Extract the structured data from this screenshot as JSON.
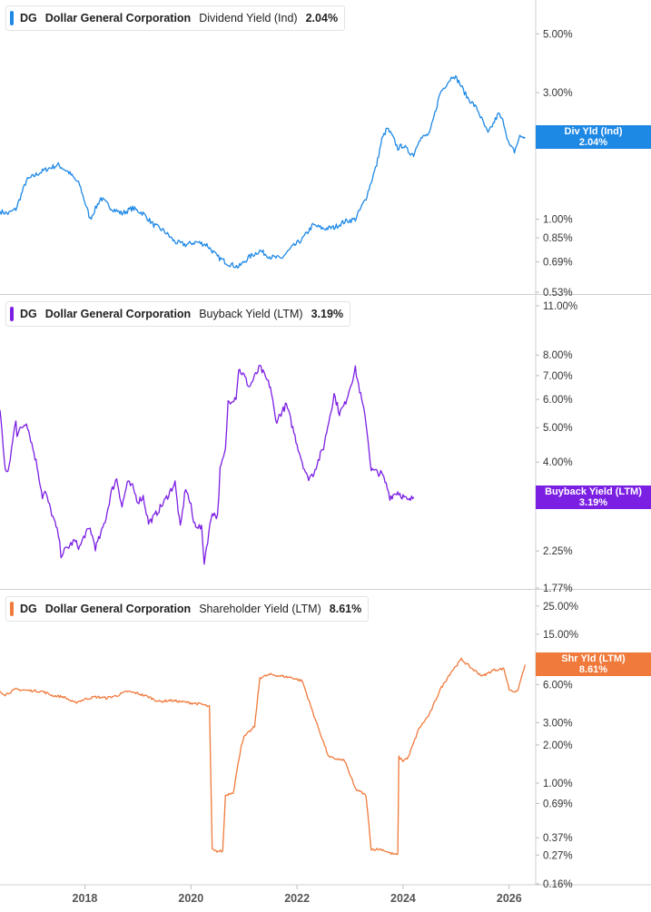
{
  "chart_data": [
    {
      "type": "line",
      "ticker": "DG",
      "company": "Dollar General Corporation",
      "metric": "Dividend Yield (Ind)",
      "current_value": "2.04%",
      "tag_label": "Div Yld (Ind)",
      "color": "#1e88e5",
      "scale": "log",
      "ylim": [
        0.53,
        6.4
      ],
      "ticks": [
        {
          "v": 5.0,
          "label": "5.00%"
        },
        {
          "v": 3.0,
          "label": "3.00%"
        },
        {
          "v": 1.0,
          "label": "1.00%"
        },
        {
          "v": 0.85,
          "label": "0.85%"
        },
        {
          "v": 0.69,
          "label": "0.69%"
        },
        {
          "v": 0.53,
          "label": "0.53%"
        }
      ],
      "ticks_hidden": [
        {
          "v": 2.0,
          "label": "2.00%"
        }
      ],
      "x": [
        2016.4,
        2016.55,
        2016.7,
        2016.9,
        2017.1,
        2017.3,
        2017.5,
        2017.7,
        2017.9,
        2018.1,
        2018.3,
        2018.5,
        2018.7,
        2018.9,
        2019.1,
        2019.3,
        2019.5,
        2019.7,
        2019.9,
        2020.1,
        2020.3,
        2020.5,
        2020.7,
        2020.9,
        2021.1,
        2021.3,
        2021.5,
        2021.7,
        2021.9,
        2022.1,
        2022.3,
        2022.5,
        2022.7,
        2022.9,
        2023.1,
        2023.3,
        2023.5,
        2023.6,
        2023.7,
        2023.8,
        2023.9,
        2024.0,
        2024.1,
        2024.2,
        2024.3,
        2024.5,
        2024.7,
        2024.8,
        2024.95,
        2025.05,
        2025.2,
        2025.4,
        2025.6,
        2025.8,
        2025.9,
        2026.0,
        2026.1,
        2026.2,
        2026.3
      ],
      "y": [
        1.07,
        1.05,
        1.09,
        1.4,
        1.48,
        1.55,
        1.6,
        1.5,
        1.35,
        1.0,
        1.2,
        1.1,
        1.05,
        1.1,
        1.05,
        0.95,
        0.9,
        0.82,
        0.8,
        0.82,
        0.8,
        0.72,
        0.68,
        0.66,
        0.72,
        0.76,
        0.72,
        0.71,
        0.78,
        0.84,
        0.95,
        0.92,
        0.93,
        0.98,
        1.0,
        1.2,
        1.6,
        2.0,
        2.2,
        2.05,
        1.85,
        1.9,
        1.8,
        1.75,
        2.0,
        2.1,
        3.0,
        3.2,
        3.5,
        3.3,
        2.9,
        2.6,
        2.1,
        2.5,
        2.3,
        1.9,
        1.8,
        2.05,
        2.04
      ]
    },
    {
      "type": "line",
      "ticker": "DG",
      "company": "Dollar General Corporation",
      "metric": "Buyback Yield (LTM)",
      "current_value": "3.19%",
      "tag_label": "Buyback Yield (LTM)",
      "color": "#7b1fe3",
      "scale": "log",
      "ylim": [
        1.77,
        11.0
      ],
      "ticks": [
        {
          "v": 11.0,
          "label": "11.00%"
        },
        {
          "v": 8.0,
          "label": "8.00%"
        },
        {
          "v": 7.0,
          "label": "7.00%"
        },
        {
          "v": 6.0,
          "label": "6.00%"
        },
        {
          "v": 5.0,
          "label": "5.00%"
        },
        {
          "v": 4.0,
          "label": "4.00%"
        },
        {
          "v": 2.25,
          "label": "2.25%"
        },
        {
          "v": 1.77,
          "label": "1.77%"
        }
      ],
      "ticks_hidden": [
        {
          "v": 3.2,
          "label": "3.20%"
        }
      ],
      "x": [
        2016.4,
        2016.5,
        2016.55,
        2016.7,
        2016.72,
        2016.9,
        2017.1,
        2017.2,
        2017.25,
        2017.5,
        2017.55,
        2017.8,
        2017.9,
        2018.0,
        2018.1,
        2018.2,
        2018.3,
        2018.4,
        2018.5,
        2018.6,
        2018.7,
        2018.8,
        2018.9,
        2019.0,
        2019.1,
        2019.2,
        2019.3,
        2019.5,
        2019.7,
        2019.8,
        2019.9,
        2020.0,
        2020.05,
        2020.2,
        2020.25,
        2020.4,
        2020.5,
        2020.55,
        2020.65,
        2020.7,
        2020.85,
        2020.9,
        2021.0,
        2021.1,
        2021.3,
        2021.5,
        2021.6,
        2021.8,
        2022.0,
        2022.1,
        2022.2,
        2022.3,
        2022.5,
        2022.7,
        2022.8,
        2022.9,
        2023.1,
        2023.3,
        2023.4,
        2023.6,
        2023.7,
        2023.75,
        2023.9,
        2024.0,
        2024.1,
        2024.2
      ],
      "y": [
        5.6,
        3.8,
        3.7,
        5.3,
        4.8,
        5.2,
        3.9,
        3.2,
        3.3,
        2.5,
        2.2,
        2.4,
        2.3,
        2.5,
        2.6,
        2.3,
        2.5,
        2.8,
        3.3,
        3.6,
        3.0,
        3.5,
        3.4,
        3.1,
        3.2,
        2.7,
        2.8,
        3.1,
        3.5,
        2.6,
        3.4,
        3.0,
        2.7,
        2.6,
        2.1,
        2.9,
        2.8,
        3.8,
        4.3,
        5.9,
        6.1,
        7.3,
        7.0,
        6.5,
        7.4,
        6.5,
        5.2,
        5.8,
        4.5,
        4.0,
        3.6,
        3.7,
        4.4,
        6.2,
        5.5,
        5.8,
        7.3,
        5.2,
        3.8,
        3.7,
        3.4,
        3.19,
        3.3,
        3.2,
        3.1,
        3.19
      ]
    },
    {
      "type": "line",
      "ticker": "DG",
      "company": "Dollar General Corporation",
      "metric": "Shareholder Yield (LTM)",
      "current_value": "8.61%",
      "tag_label": "Shr Yld (LTM)",
      "color": "#f07a3c",
      "scale": "log",
      "ylim": [
        0.16,
        28.0
      ],
      "ticks": [
        {
          "v": 25.0,
          "label": "25.00%"
        },
        {
          "v": 15.0,
          "label": "15.00%"
        },
        {
          "v": 6.0,
          "label": "6.00%"
        },
        {
          "v": 3.0,
          "label": "3.00%"
        },
        {
          "v": 2.0,
          "label": "2.00%"
        },
        {
          "v": 1.0,
          "label": "1.00%"
        },
        {
          "v": 0.69,
          "label": "0.69%"
        },
        {
          "v": 0.37,
          "label": "0.37%"
        },
        {
          "v": 0.27,
          "label": "0.27%"
        },
        {
          "v": 0.16,
          "label": "0.16%"
        }
      ],
      "ticks_hidden": [
        {
          "v": 8.0,
          "label": "8.00%"
        }
      ],
      "x": [
        2016.4,
        2016.5,
        2016.7,
        2016.9,
        2017.2,
        2017.4,
        2017.6,
        2017.8,
        2018.0,
        2018.2,
        2018.4,
        2018.6,
        2018.8,
        2019.0,
        2019.2,
        2019.4,
        2019.6,
        2019.8,
        2020.0,
        2020.2,
        2020.35,
        2020.4,
        2020.45,
        2020.6,
        2020.65,
        2020.8,
        2020.95,
        2021.0,
        2021.2,
        2021.3,
        2021.5,
        2021.7,
        2021.9,
        2022.1,
        2022.3,
        2022.5,
        2022.6,
        2022.9,
        2023.1,
        2023.3,
        2023.4,
        2023.6,
        2023.75,
        2023.9,
        2023.92,
        2024.0,
        2024.1,
        2024.3,
        2024.5,
        2024.7,
        2024.9,
        2025.1,
        2025.3,
        2025.5,
        2025.7,
        2025.9,
        2026.0,
        2026.15,
        2026.3
      ],
      "y": [
        5.3,
        5.0,
        5.5,
        5.4,
        5.3,
        4.9,
        4.8,
        4.3,
        4.6,
        4.8,
        4.7,
        4.9,
        5.3,
        5.1,
        4.8,
        4.4,
        4.5,
        4.4,
        4.3,
        4.2,
        4.0,
        0.3,
        0.29,
        0.29,
        0.8,
        0.85,
        2.0,
        2.3,
        2.8,
        6.8,
        7.2,
        7.0,
        6.8,
        6.4,
        3.6,
        2.1,
        1.6,
        1.5,
        0.9,
        0.8,
        0.3,
        0.3,
        0.28,
        0.27,
        1.6,
        1.5,
        1.6,
        2.7,
        3.5,
        5.5,
        7.5,
        9.5,
        8.0,
        7.0,
        7.8,
        8.0,
        5.5,
        5.2,
        8.61
      ]
    }
  ],
  "x_axis": {
    "ticks": [
      2018,
      2020,
      2022,
      2024,
      2026
    ],
    "tick_labels": [
      "2018",
      "2020",
      "2022",
      "2024",
      "2026"
    ],
    "xlim": [
      2016.4,
      2026.5
    ]
  },
  "legend_position": "top-left",
  "grid": false
}
